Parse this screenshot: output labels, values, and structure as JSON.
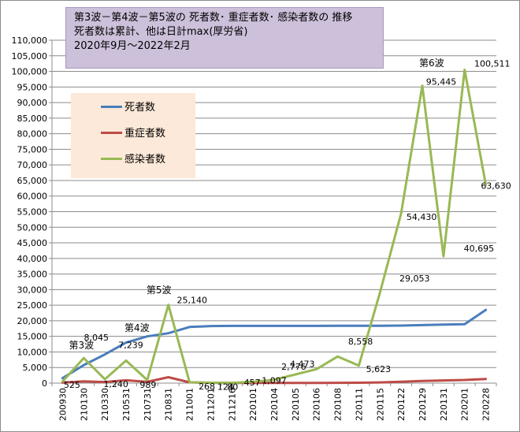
{
  "chart_data": {
    "type": "line",
    "title_lines": [
      "第3波－第4波－第5波の 死者数･ 重症者数･ 感染者数の 推移",
      "死者数は累計、他は日計max(厚労省)",
      "2020年9月～2022年2月"
    ],
    "categories": [
      "200930",
      "210130",
      "210330",
      "210531",
      "210731",
      "210831",
      "211001",
      "211201",
      "211216",
      "220101",
      "220104",
      "220105",
      "220106",
      "220108",
      "220111",
      "220115",
      "220122",
      "220129",
      "220131",
      "220201",
      "220228"
    ],
    "ylim": [
      0,
      110000
    ],
    "ytick_step": 5000,
    "ytick_labels": [
      "0",
      "5,000",
      "10,000",
      "15,000",
      "20,000",
      "25,000",
      "30,000",
      "35,000",
      "40,000",
      "45,000",
      "50,000",
      "55,000",
      "60,000",
      "65,000",
      "70,000",
      "75,000",
      "80,000",
      "85,000",
      "90,000",
      "95,000",
      "100,000",
      "105,000",
      "110,000"
    ],
    "gridlines": true,
    "legend_position": "top-left",
    "series": [
      {
        "name": "死者数",
        "color": "#4a7ebb",
        "values": [
          1600,
          5800,
          9200,
          13000,
          15000,
          16000,
          18000,
          18300,
          18350,
          18370,
          18370,
          18370,
          18370,
          18380,
          18390,
          18400,
          18450,
          18600,
          18800,
          18900,
          23500
        ]
      },
      {
        "name": "重症者数",
        "color": "#be4b48",
        "values": [
          150,
          550,
          350,
          900,
          400,
          1900,
          250,
          100,
          70,
          60,
          60,
          60,
          70,
          90,
          130,
          220,
          450,
          700,
          850,
          1000,
          1350
        ]
      },
      {
        "name": "感染者数",
        "color": "#98b954",
        "values": [
          525,
          8045,
          1240,
          7239,
          989,
          25140,
          268,
          124,
          80,
          457,
          1097,
          2776,
          4473,
          8558,
          5623,
          29053,
          54430,
          95445,
          40695,
          100511,
          63630
        ]
      }
    ],
    "data_labels": [
      {
        "series": 2,
        "index": 0,
        "text": "525"
      },
      {
        "series": 2,
        "index": 1,
        "text": "8,045"
      },
      {
        "series": 2,
        "index": 2,
        "text": "1,240"
      },
      {
        "series": 2,
        "index": 3,
        "text": "7,239"
      },
      {
        "series": 2,
        "index": 4,
        "text": "989"
      },
      {
        "series": 2,
        "index": 5,
        "text": "25,140"
      },
      {
        "series": 2,
        "index": 6,
        "text": "268"
      },
      {
        "series": 2,
        "index": 7,
        "text": "124"
      },
      {
        "series": 2,
        "index": 8,
        "text": "80"
      },
      {
        "series": 2,
        "index": 9,
        "text": "457"
      },
      {
        "series": 2,
        "index": 10,
        "text": "1,097"
      },
      {
        "series": 2,
        "index": 11,
        "text": "2,776"
      },
      {
        "series": 2,
        "index": 12,
        "text": "4,473"
      },
      {
        "series": 2,
        "index": 13,
        "text": "8,558"
      },
      {
        "series": 2,
        "index": 14,
        "text": "5,623"
      },
      {
        "series": 2,
        "index": 15,
        "text": "29,053"
      },
      {
        "series": 2,
        "index": 16,
        "text": "54,430"
      },
      {
        "series": 2,
        "index": 17,
        "text": "95,445"
      },
      {
        "series": 2,
        "index": 18,
        "text": "40,695"
      },
      {
        "series": 2,
        "index": 19,
        "text": "100,511"
      },
      {
        "series": 2,
        "index": 20,
        "text": "63,630"
      }
    ],
    "annotations": [
      {
        "text": "第3波",
        "index": 1
      },
      {
        "text": "第4波",
        "index": 4
      },
      {
        "text": "第5波",
        "index": 5
      },
      {
        "text": "第6波",
        "index": 18
      }
    ]
  }
}
